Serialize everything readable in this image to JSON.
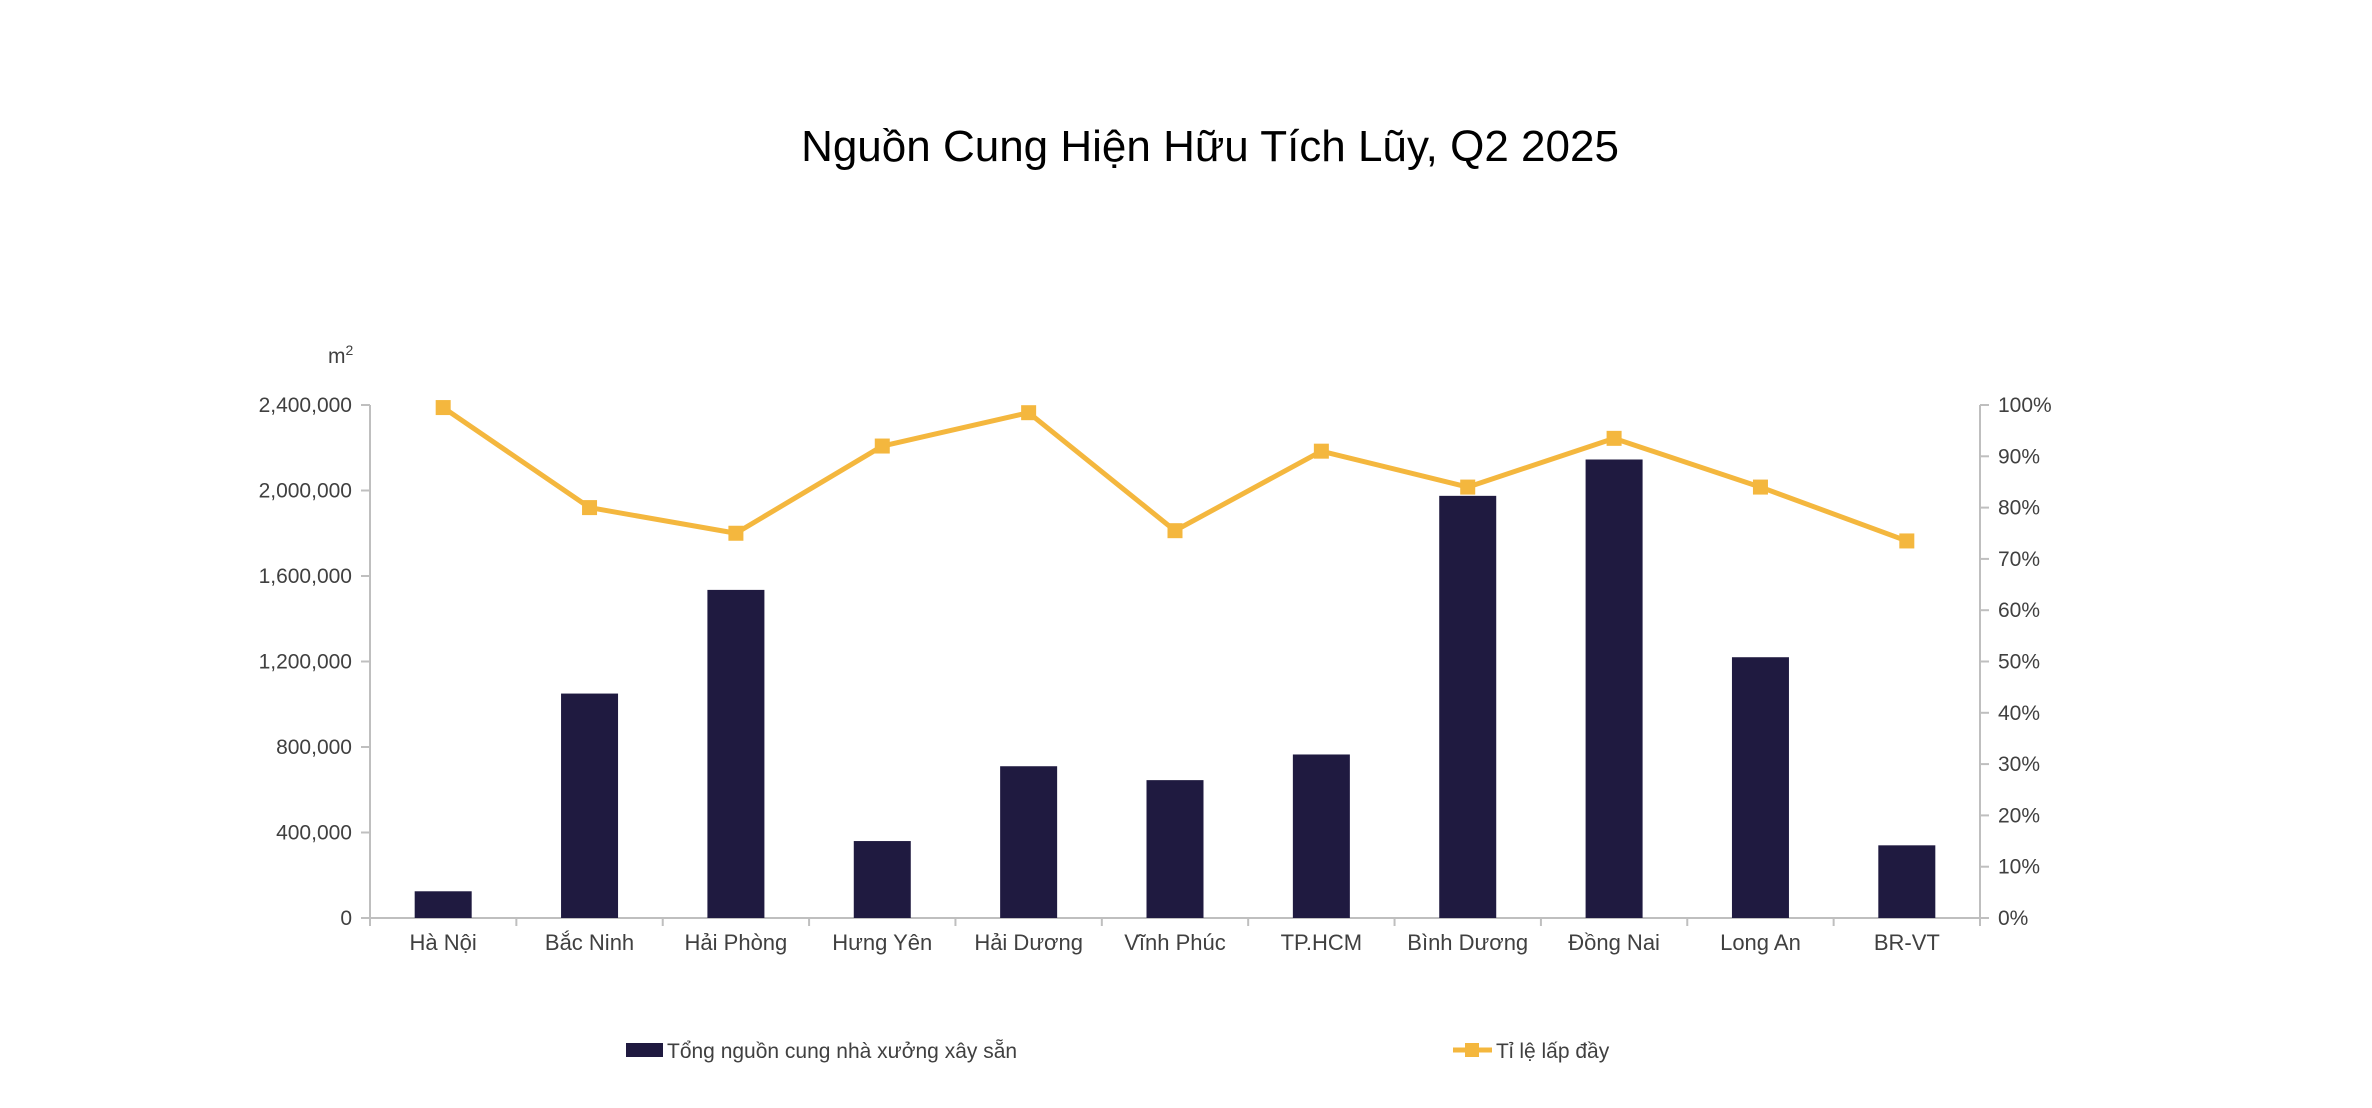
{
  "chart_data": {
    "type": "bar",
    "title": "Nguồn Cung Hiện Hữu Tích Lũy, Q2 2025",
    "y_unit_label": "m",
    "y_unit_superscript": "2",
    "categories": [
      "Hà Nội",
      "Bắc Ninh",
      "Hải Phòng",
      "Hưng Yên",
      "Hải Dương",
      "Vĩnh Phúc",
      "TP.HCM",
      "Bình Dương",
      "Đồng Nai",
      "Long An",
      "BR-VT"
    ],
    "series": [
      {
        "name": "Tổng nguồn cung nhà xưởng xây sẵn",
        "type": "bar",
        "axis": "left",
        "color": "#1f1a40",
        "values": [
          125000,
          1050000,
          1535000,
          360000,
          710000,
          645000,
          765000,
          1975000,
          2145000,
          1220000,
          340000
        ]
      },
      {
        "name": "Tỉ lệ lấp đầy",
        "type": "line",
        "axis": "right",
        "color": "#f4b73e",
        "marker": "square",
        "values": [
          99.5,
          80,
          75,
          92,
          98.5,
          75.5,
          91,
          84,
          93.5,
          84,
          73.5
        ]
      }
    ],
    "y_left": {
      "ylim": [
        0,
        2400000
      ],
      "ticks": [
        0,
        400000,
        800000,
        1200000,
        1600000,
        2000000,
        2400000
      ],
      "tick_labels": [
        "0",
        "400,000",
        "800,000",
        "1,200,000",
        "1,600,000",
        "2,000,000",
        "2,400,000"
      ]
    },
    "y_right": {
      "ylim": [
        0,
        100
      ],
      "ticks": [
        0,
        10,
        20,
        30,
        40,
        50,
        60,
        70,
        80,
        90,
        100
      ],
      "tick_labels": [
        "0%",
        "10%",
        "20%",
        "30%",
        "40%",
        "50%",
        "60%",
        "70%",
        "80%",
        "90%",
        "100%"
      ]
    },
    "grid": false,
    "legend_position": "bottom",
    "axis_color": "#bfbfbf"
  }
}
